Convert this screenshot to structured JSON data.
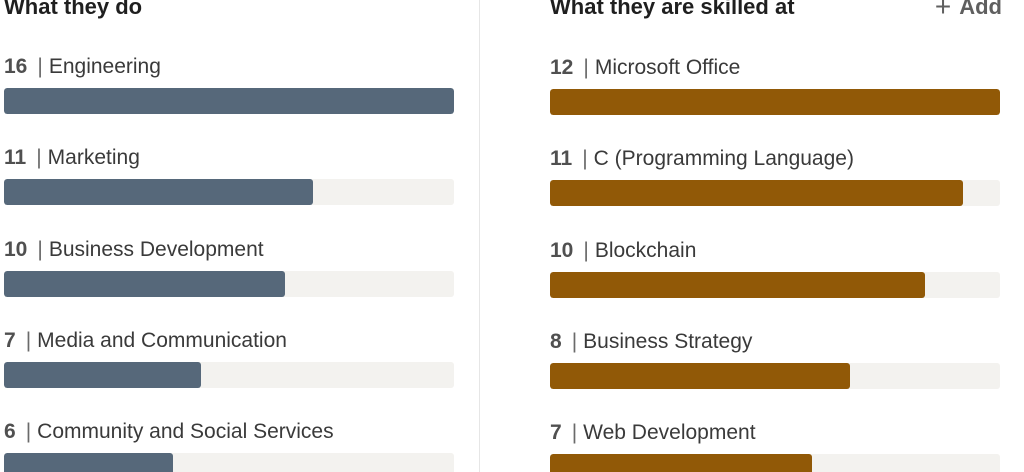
{
  "left_panel": {
    "title": "What they do",
    "items": [
      {
        "count": "16",
        "label": "Engineering",
        "fraction": 1.0
      },
      {
        "count": "11",
        "label": "Marketing",
        "fraction": 0.6875
      },
      {
        "count": "10",
        "label": "Business Development",
        "fraction": 0.625
      },
      {
        "count": "7",
        "label": "Media and Communication",
        "fraction": 0.4375
      },
      {
        "count": "6",
        "label": "Community and Social Services",
        "fraction": 0.375
      }
    ]
  },
  "right_panel": {
    "title": "What they are skilled at",
    "add_label": "Add",
    "items": [
      {
        "count": "12",
        "label": "Microsoft Office",
        "fraction": 1.0
      },
      {
        "count": "11",
        "label": "C (Programming Language)",
        "fraction": 0.9167
      },
      {
        "count": "10",
        "label": "Blockchain",
        "fraction": 0.8333
      },
      {
        "count": "8",
        "label": "Business Strategy",
        "fraction": 0.6667
      },
      {
        "count": "7",
        "label": "Web Development",
        "fraction": 0.5833
      }
    ]
  },
  "colors": {
    "left_bar": "#56687a",
    "right_bar": "#915907",
    "track": "#f3f2ef"
  },
  "icons": {
    "add": "plus-icon"
  }
}
